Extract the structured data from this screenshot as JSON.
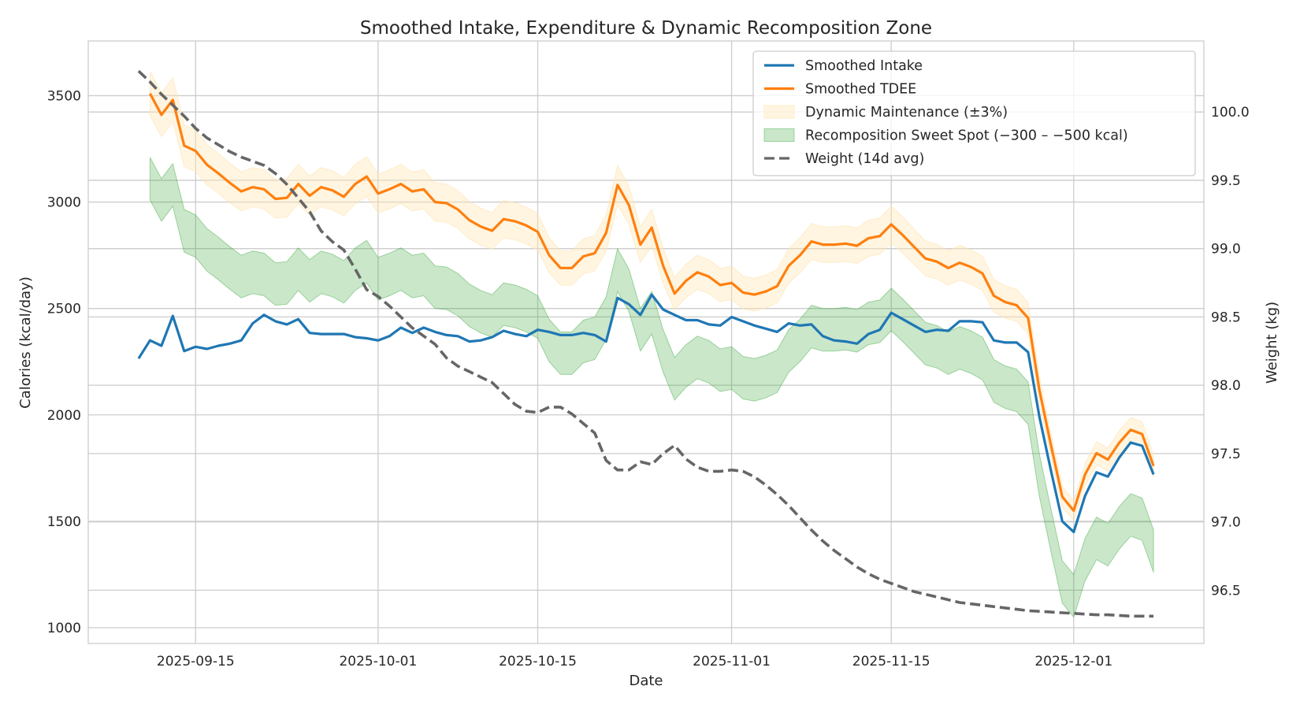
{
  "chart_data": {
    "type": "line",
    "title": "Smoothed Intake, Expenditure & Dynamic Recomposition Zone",
    "xlabel": "Date",
    "ylabel": "Calories (kcal/day)",
    "ylabel_right": "Weight (kg)",
    "xlim": [
      "2025-09-05T14:00",
      "2025-12-12T10:00"
    ],
    "ylim": [
      926,
      3757
    ],
    "ylim_right": [
      96.11,
      100.52
    ],
    "grid": true,
    "legend_placement": "top-right",
    "x_ticks": [
      "2025-09-15",
      "2025-10-01",
      "2025-10-15",
      "2025-11-01",
      "2025-11-15",
      "2025-12-01"
    ],
    "y_ticks": [
      1000,
      1500,
      2000,
      2500,
      3000,
      3500
    ],
    "y_ticks_right": [
      "96.5",
      "97.0",
      "97.5",
      "98.0",
      "98.5",
      "99.0",
      "99.5",
      "100.0"
    ],
    "dates": [
      "2025-09-10",
      "2025-09-11",
      "2025-09-12",
      "2025-09-13",
      "2025-09-14",
      "2025-09-15",
      "2025-09-16",
      "2025-09-17",
      "2025-09-18",
      "2025-09-19",
      "2025-09-20",
      "2025-09-21",
      "2025-09-22",
      "2025-09-23",
      "2025-09-24",
      "2025-09-25",
      "2025-09-26",
      "2025-09-27",
      "2025-09-28",
      "2025-09-29",
      "2025-09-30",
      "2025-10-01",
      "2025-10-02",
      "2025-10-03",
      "2025-10-04",
      "2025-10-05",
      "2025-10-06",
      "2025-10-07",
      "2025-10-08",
      "2025-10-09",
      "2025-10-10",
      "2025-10-11",
      "2025-10-12",
      "2025-10-13",
      "2025-10-14",
      "2025-10-15",
      "2025-10-16",
      "2025-10-17",
      "2025-10-18",
      "2025-10-19",
      "2025-10-20",
      "2025-10-21",
      "2025-10-22",
      "2025-10-23",
      "2025-10-24",
      "2025-10-25",
      "2025-10-26",
      "2025-10-27",
      "2025-10-28",
      "2025-10-29",
      "2025-10-30",
      "2025-10-31",
      "2025-11-01",
      "2025-11-02",
      "2025-11-03",
      "2025-11-04",
      "2025-11-05",
      "2025-11-06",
      "2025-11-07",
      "2025-11-08",
      "2025-11-09",
      "2025-11-10",
      "2025-11-11",
      "2025-11-12",
      "2025-11-13",
      "2025-11-14",
      "2025-11-15",
      "2025-11-16",
      "2025-11-17",
      "2025-11-18",
      "2025-11-19",
      "2025-11-20",
      "2025-11-21",
      "2025-11-22",
      "2025-11-23",
      "2025-11-24",
      "2025-11-25",
      "2025-11-26",
      "2025-11-27",
      "2025-11-28",
      "2025-11-29",
      "2025-11-30",
      "2025-12-01",
      "2025-12-02",
      "2025-12-03",
      "2025-12-04",
      "2025-12-05",
      "2025-12-06",
      "2025-12-07",
      "2025-12-08"
    ],
    "series": [
      {
        "name": "Smoothed Intake",
        "axis": "left",
        "color": "#1f77b4",
        "style": "solid",
        "values": [
          2265,
          2350,
          2325,
          2465,
          2300,
          2320,
          2310,
          2325,
          2335,
          2350,
          2430,
          2470,
          2440,
          2425,
          2450,
          2385,
          2380,
          2380,
          2380,
          2365,
          2360,
          2350,
          2370,
          2410,
          2385,
          2410,
          2390,
          2375,
          2370,
          2345,
          2350,
          2365,
          2395,
          2380,
          2370,
          2400,
          2390,
          2375,
          2375,
          2385,
          2375,
          2345,
          2550,
          2520,
          2470,
          2565,
          2495,
          2470,
          2445,
          2445,
          2425,
          2420,
          2460,
          2440,
          2420,
          2405,
          2390,
          2430,
          2420,
          2425,
          2370,
          2350,
          2345,
          2335,
          2380,
          2400,
          2480,
          2450,
          2420,
          2390,
          2400,
          2395,
          2440,
          2440,
          2435,
          2350,
          2340,
          2340,
          2295,
          1990,
          1740,
          1500,
          1450,
          1620,
          1730,
          1710,
          1800,
          1870,
          1855,
          1720
        ]
      },
      {
        "name": "Smoothed TDEE",
        "axis": "left",
        "color": "#ff7f0e",
        "style": "solid",
        "values": [
          null,
          3510,
          3410,
          3480,
          3265,
          3240,
          3175,
          3135,
          3090,
          3050,
          3070,
          3060,
          3015,
          3020,
          3085,
          3030,
          3070,
          3055,
          3025,
          3085,
          3120,
          3040,
          3060,
          3085,
          3050,
          3060,
          3000,
          2995,
          2965,
          2915,
          2885,
          2865,
          2920,
          2910,
          2890,
          2860,
          2750,
          2690,
          2690,
          2745,
          2760,
          2855,
          3080,
          2985,
          2800,
          2880,
          2700,
          2570,
          2630,
          2670,
          2650,
          2610,
          2620,
          2575,
          2565,
          2580,
          2605,
          2700,
          2750,
          2815,
          2800,
          2800,
          2805,
          2795,
          2830,
          2840,
          2895,
          2845,
          2790,
          2735,
          2720,
          2690,
          2715,
          2695,
          2665,
          2560,
          2530,
          2515,
          2455,
          2115,
          1860,
          1615,
          1550,
          1720,
          1820,
          1790,
          1870,
          1930,
          1910,
          1760
        ]
      },
      {
        "name": "Weight (14d avg)",
        "axis": "right",
        "color": "#666666",
        "style": "dashed",
        "values": [
          100.3,
          100.22,
          100.13,
          100.05,
          99.97,
          99.88,
          99.81,
          99.76,
          99.71,
          99.67,
          99.64,
          99.61,
          99.55,
          99.47,
          99.37,
          99.27,
          99.13,
          99.05,
          98.99,
          98.85,
          98.7,
          98.65,
          98.58,
          98.5,
          98.42,
          98.36,
          98.3,
          98.2,
          98.14,
          98.1,
          98.06,
          98.02,
          97.94,
          97.86,
          97.81,
          97.8,
          97.84,
          97.84,
          97.79,
          97.72,
          97.65,
          97.45,
          97.38,
          97.38,
          97.44,
          97.42,
          97.5,
          97.56,
          97.46,
          97.4,
          97.37,
          97.37,
          97.38,
          97.37,
          97.33,
          97.27,
          97.2,
          97.12,
          97.03,
          96.94,
          96.86,
          96.79,
          96.73,
          96.67,
          96.62,
          96.58,
          96.55,
          96.52,
          96.49,
          96.47,
          96.45,
          96.43,
          96.41,
          96.4,
          96.39,
          96.38,
          96.37,
          96.36,
          96.35,
          96.345,
          96.34,
          96.335,
          96.33,
          96.325,
          96.32,
          96.32,
          96.315,
          96.31,
          96.31,
          96.31
        ]
      }
    ],
    "bands": [
      {
        "name": "Dynamic Maintenance (±3%)",
        "based_on": "Smoothed TDEE",
        "pct": 3,
        "color": "#ffe5b4",
        "opacity": 0.4
      },
      {
        "name": "Recomposition Sweet Spot (−300 – −500 kcal)",
        "based_on": "Smoothed TDEE",
        "deficit_kcal": [
          300,
          500
        ],
        "color": "#2ca02c",
        "opacity": 0.25
      }
    ],
    "legend_order": [
      "Smoothed Intake",
      "Smoothed TDEE",
      "Dynamic Maintenance (±3%)",
      "Recomposition Sweet Spot (−300 – −500 kcal)",
      "Weight (14d avg)"
    ]
  }
}
